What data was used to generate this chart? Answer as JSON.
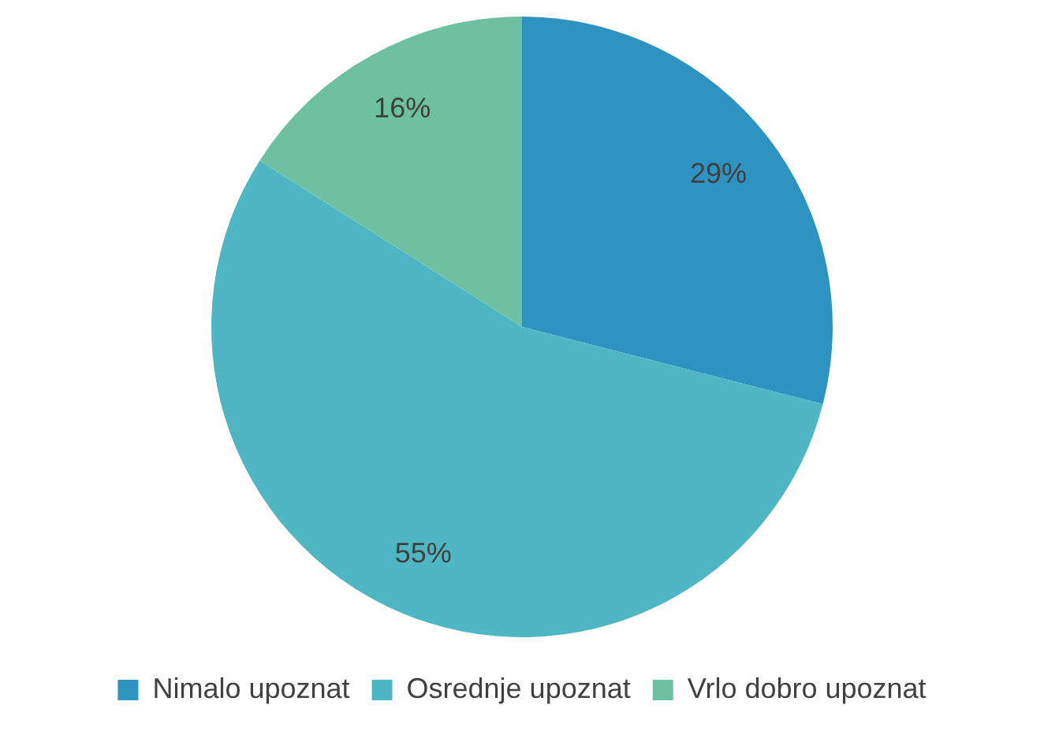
{
  "chart_data": {
    "type": "pie",
    "categories": [
      "Nimalo upoznat",
      "Osrednje upoznat",
      "Vrlo dobro upoznat"
    ],
    "values": [
      29,
      55,
      16
    ],
    "colors": [
      "#2e93c0",
      "#4fb7c3",
      "#6dc0a2"
    ],
    "value_labels": [
      "29%",
      "55%",
      "16%"
    ],
    "legend": "bottom"
  }
}
